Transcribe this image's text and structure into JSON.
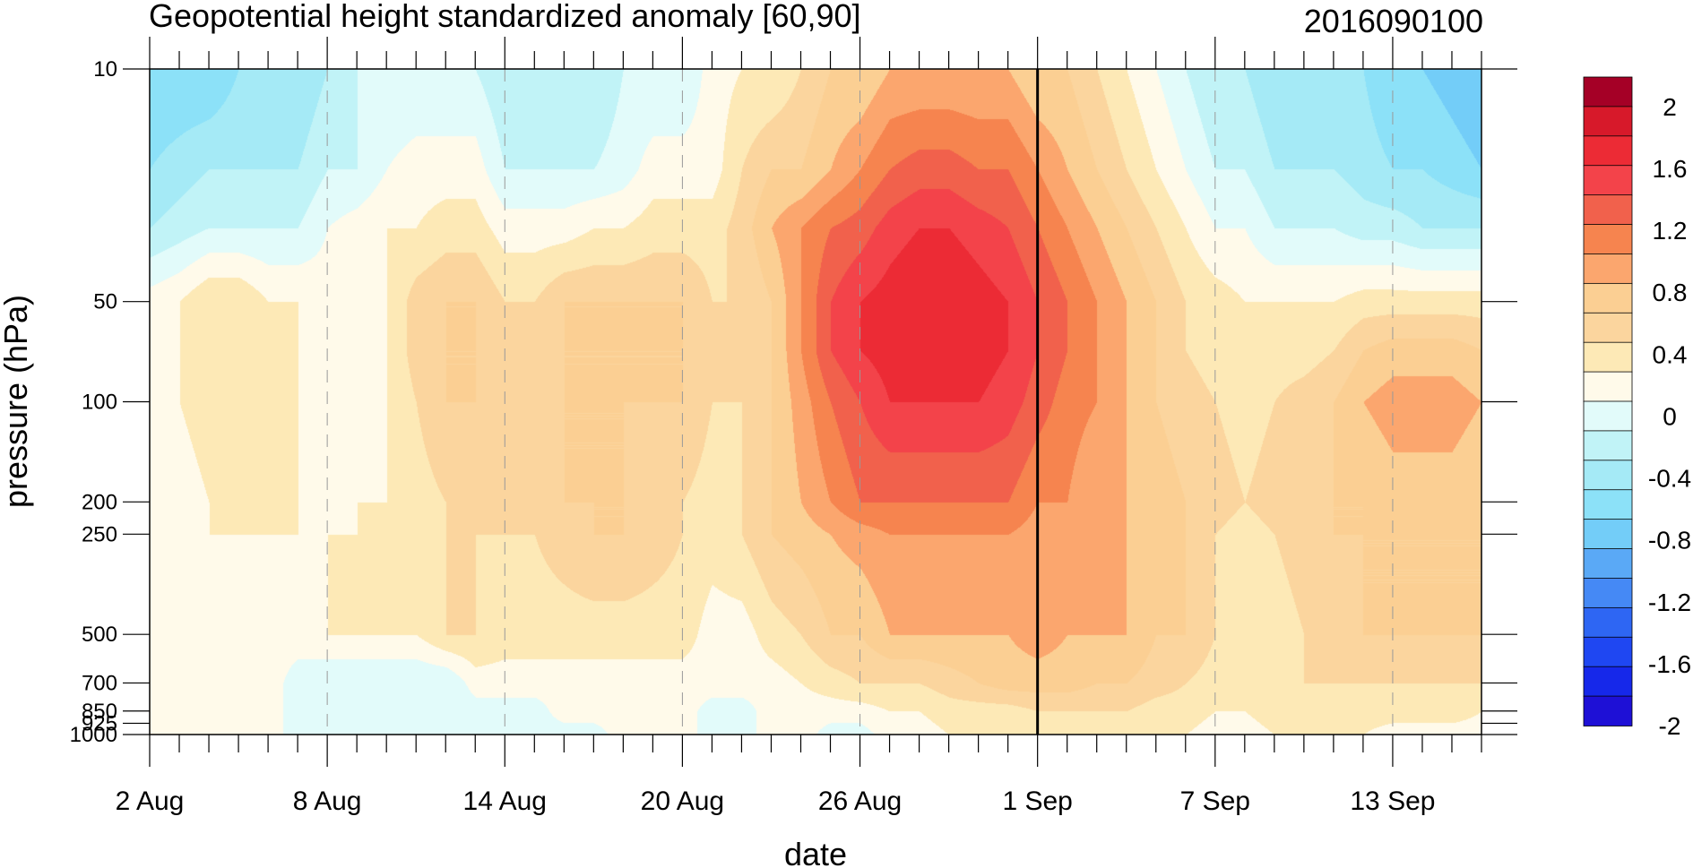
{
  "chart_data": {
    "type": "heatmap",
    "subtype": "time-pressure filled contour",
    "title": "Geopotential height standardized anomaly [60,90]",
    "title_right": "2016090100",
    "xlabel": "date",
    "ylabel": "pressure (hPa)",
    "y_scale": "log",
    "y_inverted": true,
    "xlim": [
      "2 Aug",
      "16 Sep"
    ],
    "ylim": [
      1000,
      10
    ],
    "grid": "dashed vertical lines at labeled dates",
    "marker_line": {
      "date": "1 Sep",
      "style": "solid black vertical line"
    },
    "x_ticks": [
      {
        "label": "2 Aug",
        "day": 0
      },
      {
        "label": "8 Aug",
        "day": 6
      },
      {
        "label": "14 Aug",
        "day": 12
      },
      {
        "label": "20 Aug",
        "day": 18
      },
      {
        "label": "26 Aug",
        "day": 24
      },
      {
        "label": "1 Sep",
        "day": 30
      },
      {
        "label": "7 Sep",
        "day": 36
      },
      {
        "label": "13 Sep",
        "day": 42
      }
    ],
    "y_ticks": [
      {
        "label": "10",
        "value": 10
      },
      {
        "label": "50",
        "value": 50
      },
      {
        "label": "100",
        "value": 100
      },
      {
        "label": "200",
        "value": 200
      },
      {
        "label": "250",
        "value": 250
      },
      {
        "label": "500",
        "value": 500
      },
      {
        "label": "700",
        "value": 700
      },
      {
        "label": "850",
        "value": 850
      },
      {
        "label": "925",
        "value": 925
      },
      {
        "label": "1000",
        "value": 1000
      }
    ],
    "levels": [
      {
        "value": 10,
        "row": [
          -0.8,
          -0.8,
          -0.8,
          -0.6,
          -0.6,
          -0.6,
          -0.4,
          -0.2,
          -0.2,
          -0.2,
          -0.2,
          -0.2,
          -0.4,
          -0.4,
          -0.4,
          -0.4,
          -0.2,
          -0.2,
          -0.2,
          0.1,
          0.2,
          0.2,
          0.4,
          0.6,
          0.6,
          0.8,
          0.8,
          0.8,
          0.8,
          0.8,
          0.6,
          0.6,
          0.4,
          0.2,
          0.0,
          -0.2,
          -0.4,
          -0.4,
          -0.6,
          -0.6,
          -0.6,
          -0.6,
          -0.8,
          -0.8,
          -0.9,
          -1.0
        ]
      },
      {
        "value": 20,
        "row": [
          -0.6,
          -0.5,
          -0.4,
          -0.4,
          -0.4,
          -0.4,
          -0.2,
          -0.2,
          0.0,
          0.1,
          0.1,
          0.1,
          -0.2,
          -0.2,
          -0.2,
          -0.2,
          -0.1,
          0.1,
          0.1,
          0.1,
          0.4,
          0.6,
          0.6,
          0.8,
          1.0,
          1.2,
          1.3,
          1.3,
          1.2,
          1.2,
          1.0,
          0.8,
          0.6,
          0.4,
          0.2,
          0.0,
          -0.2,
          -0.2,
          -0.4,
          -0.4,
          -0.4,
          -0.5,
          -0.6,
          -0.6,
          -0.7,
          -0.8
        ]
      },
      {
        "value": 30,
        "row": [
          -0.4,
          -0.3,
          -0.2,
          -0.2,
          -0.2,
          -0.2,
          0.0,
          0.1,
          0.2,
          0.2,
          0.3,
          0.3,
          0.1,
          0.1,
          0.1,
          0.2,
          0.2,
          0.3,
          0.3,
          0.3,
          0.5,
          0.8,
          1.0,
          1.2,
          1.3,
          1.5,
          1.6,
          1.6,
          1.5,
          1.4,
          1.2,
          1.0,
          0.8,
          0.6,
          0.4,
          0.2,
          0.0,
          0.0,
          -0.2,
          -0.2,
          -0.2,
          -0.3,
          -0.3,
          -0.4,
          -0.4,
          -0.4
        ]
      },
      {
        "value": 50,
        "row": [
          0.1,
          0.2,
          0.4,
          0.4,
          0.2,
          0.2,
          0.1,
          0.1,
          0.2,
          0.5,
          0.6,
          0.6,
          0.4,
          0.4,
          0.6,
          0.6,
          0.6,
          0.6,
          0.6,
          0.4,
          0.4,
          0.6,
          1.0,
          1.4,
          1.6,
          1.7,
          1.8,
          1.8,
          1.7,
          1.6,
          1.4,
          1.2,
          1.0,
          0.8,
          0.6,
          0.4,
          0.3,
          0.2,
          0.2,
          0.2,
          0.2,
          0.3,
          0.3,
          0.3,
          0.3,
          0.3
        ]
      },
      {
        "value": 70,
        "row": [
          0.1,
          0.2,
          0.4,
          0.3,
          0.2,
          0.2,
          0.1,
          0.1,
          0.2,
          0.5,
          0.6,
          0.6,
          0.4,
          0.4,
          0.6,
          0.6,
          0.6,
          0.6,
          0.6,
          0.4,
          0.4,
          0.6,
          1.0,
          1.4,
          1.6,
          1.7,
          1.7,
          1.7,
          1.7,
          1.6,
          1.4,
          1.2,
          1.0,
          0.8,
          0.6,
          0.4,
          0.3,
          0.2,
          0.3,
          0.3,
          0.4,
          0.6,
          0.7,
          0.7,
          0.7,
          0.6
        ]
      },
      {
        "value": 100,
        "row": [
          0.1,
          0.2,
          0.3,
          0.2,
          0.2,
          0.2,
          0.1,
          0.1,
          0.2,
          0.4,
          0.6,
          0.6,
          0.4,
          0.4,
          0.6,
          0.6,
          0.6,
          0.6,
          0.6,
          0.4,
          0.4,
          0.6,
          0.9,
          1.2,
          1.4,
          1.6,
          1.6,
          1.6,
          1.6,
          1.5,
          1.3,
          1.1,
          1.0,
          0.8,
          0.6,
          0.5,
          0.4,
          0.3,
          0.4,
          0.5,
          0.6,
          0.8,
          0.9,
          0.9,
          0.9,
          0.8
        ]
      },
      {
        "value": 200,
        "row": [
          0.1,
          0.1,
          0.2,
          0.2,
          0.2,
          0.2,
          0.1,
          0.2,
          0.2,
          0.3,
          0.4,
          0.4,
          0.4,
          0.5,
          0.6,
          0.6,
          0.6,
          0.5,
          0.4,
          0.3,
          0.4,
          0.6,
          0.8,
          1.0,
          1.2,
          1.2,
          1.2,
          1.2,
          1.2,
          1.2,
          1.0,
          1.0,
          0.8,
          0.8,
          0.7,
          0.6,
          0.5,
          0.4,
          0.5,
          0.6,
          0.6,
          0.6,
          0.7,
          0.7,
          0.7,
          0.6
        ]
      },
      {
        "value": 250,
        "row": [
          0.1,
          0.1,
          0.2,
          0.2,
          0.2,
          0.2,
          0.2,
          0.2,
          0.2,
          0.3,
          0.4,
          0.4,
          0.4,
          0.4,
          0.5,
          0.6,
          0.6,
          0.5,
          0.4,
          0.3,
          0.4,
          0.6,
          0.7,
          0.8,
          0.9,
          1.0,
          1.0,
          1.0,
          1.0,
          1.0,
          0.9,
          0.9,
          0.8,
          0.8,
          0.7,
          0.6,
          0.4,
          0.3,
          0.4,
          0.5,
          0.6,
          0.6,
          0.6,
          0.6,
          0.6,
          0.6
        ]
      },
      {
        "value": 500,
        "row": [
          0.1,
          0.1,
          0.1,
          0.1,
          0.1,
          0.1,
          0.2,
          0.2,
          0.2,
          0.2,
          0.4,
          0.4,
          0.3,
          0.3,
          0.3,
          0.3,
          0.3,
          0.3,
          0.3,
          0.1,
          0.1,
          0.3,
          0.4,
          0.6,
          0.6,
          0.8,
          0.8,
          0.8,
          0.8,
          0.8,
          0.9,
          0.8,
          0.8,
          0.8,
          0.6,
          0.6,
          0.4,
          0.3,
          0.3,
          0.4,
          0.5,
          0.6,
          0.6,
          0.6,
          0.6,
          0.6
        ]
      },
      {
        "value": 700,
        "row": [
          0.1,
          0.1,
          0.1,
          0.1,
          0.1,
          -0.1,
          -0.2,
          -0.2,
          -0.2,
          -0.2,
          -0.2,
          0.1,
          0.1,
          0.1,
          0.1,
          0.1,
          0.1,
          0.1,
          0.1,
          0.1,
          0.1,
          0.1,
          0.2,
          0.3,
          0.4,
          0.4,
          0.4,
          0.5,
          0.6,
          0.7,
          0.7,
          0.7,
          0.6,
          0.6,
          0.5,
          0.4,
          0.3,
          0.3,
          0.4,
          0.4,
          0.4,
          0.4,
          0.4,
          0.4,
          0.4,
          0.4
        ]
      },
      {
        "value": 850,
        "row": [
          0.1,
          0.1,
          0.1,
          0.1,
          0.1,
          -0.1,
          -0.2,
          -0.2,
          -0.2,
          -0.2,
          -0.2,
          -0.1,
          -0.1,
          -0.1,
          0.1,
          0.1,
          0.1,
          0.1,
          0.1,
          -0.1,
          -0.1,
          0.1,
          0.1,
          0.1,
          0.1,
          0.2,
          0.2,
          0.3,
          0.3,
          0.3,
          0.4,
          0.4,
          0.4,
          0.4,
          0.3,
          0.3,
          0.2,
          0.2,
          0.3,
          0.3,
          0.3,
          0.3,
          0.3,
          0.3,
          0.3,
          0.2
        ]
      },
      {
        "value": 1000,
        "row": [
          0.1,
          0.1,
          0.1,
          0.1,
          0.1,
          -0.1,
          -0.1,
          -0.1,
          -0.1,
          -0.1,
          -0.1,
          -0.1,
          -0.1,
          -0.1,
          -0.1,
          -0.1,
          0.1,
          0.1,
          0.1,
          -0.1,
          -0.1,
          0.1,
          0.1,
          -0.1,
          -0.1,
          0.1,
          0.1,
          0.2,
          0.2,
          0.2,
          0.3,
          0.3,
          0.2,
          0.2,
          0.2,
          0.2,
          0.1,
          0.1,
          0.2,
          0.2,
          0.2,
          0.2,
          0.1,
          0.1,
          0.1,
          0.1
        ]
      }
    ],
    "colorbar": {
      "min": -2.2,
      "max": 2.2,
      "step": 0.2,
      "labels": [
        "2",
        "1.6",
        "1.2",
        "0.8",
        "0.4",
        "0",
        "-0.4",
        "-0.8",
        "-1.2",
        "-1.6",
        "-2"
      ],
      "colors_top_to_bottom": [
        "#a50026",
        "#d7192a",
        "#ec2b35",
        "#f3434a",
        "#f1614c",
        "#f6844f",
        "#fba66e",
        "#fbcf93",
        "#fbd59e",
        "#fde9b6",
        "#fffaea",
        "#e2fbfa",
        "#c1f3f7",
        "#a5eaf6",
        "#8ce1f8",
        "#73cdf8",
        "#5aa9f6",
        "#4589f5",
        "#2e66f3",
        "#1f47f2",
        "#1628ea",
        "#1e10d6"
      ]
    }
  }
}
